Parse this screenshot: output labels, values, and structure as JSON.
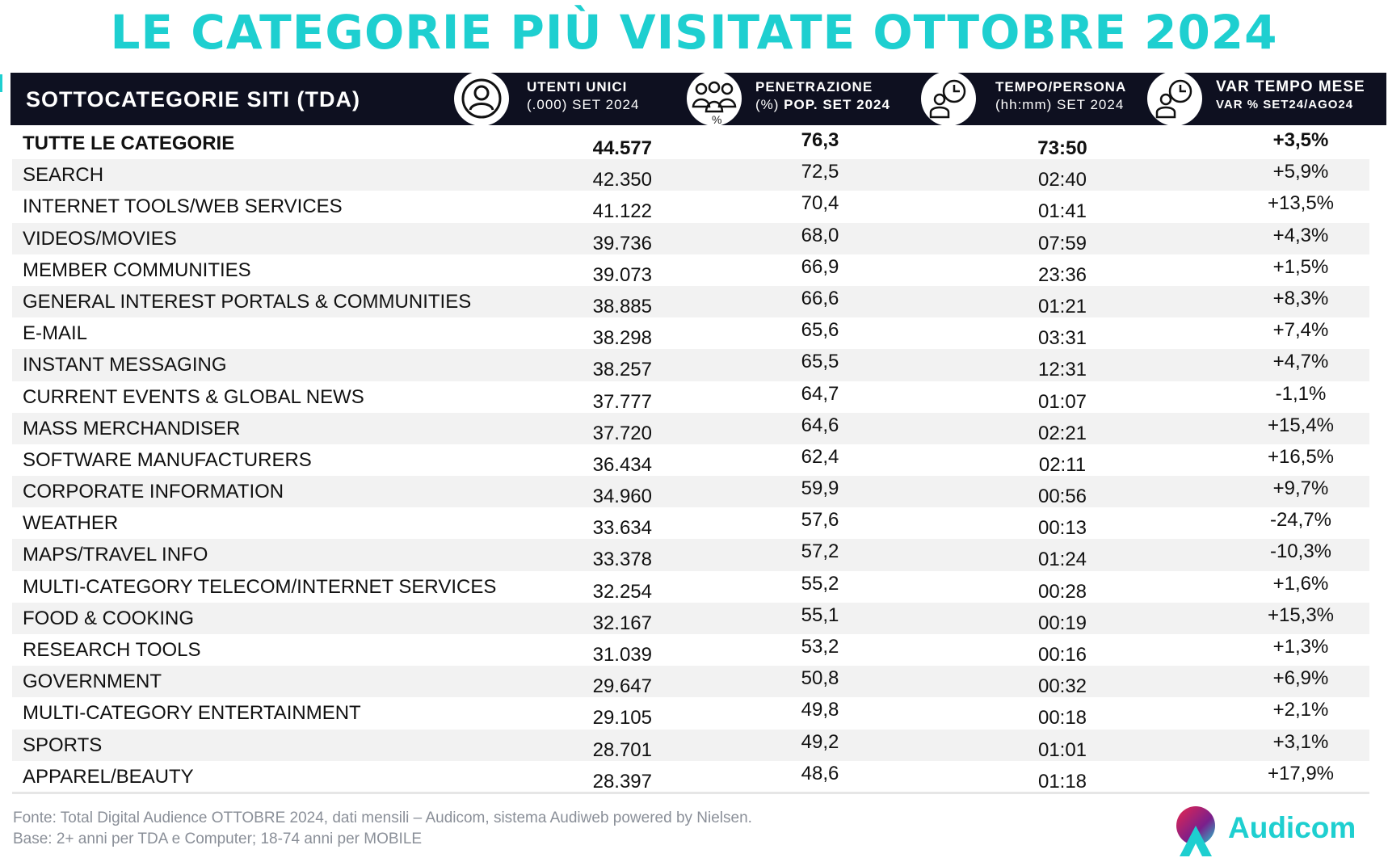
{
  "title": "LE CATEGORIE PIÙ VISITATE OTTOBRE 2024",
  "header": {
    "label": "SOTTOCATEGORIE SITI  (TDA)",
    "col_users": {
      "line1": "UTENTI UNICI",
      "line2": "(.000) SET 2024"
    },
    "col_pen": {
      "line1": "PENETRAZIONE",
      "line2_a": "(%) ",
      "line2_b": "POP. SET 2024",
      "pct_symbol": "%"
    },
    "col_time": {
      "line1": "TEMPO/PERSONA",
      "line2": "(hh:mm) SET 2024"
    },
    "col_var": {
      "line1": "VAR TEMPO MESE",
      "line2": "VAR % SET24/AGO24"
    }
  },
  "rows": [
    {
      "name": "TUTTE LE CATEGORIE",
      "users": "44.577",
      "pen": "76,3",
      "time": "73:50",
      "var": "+3,5%"
    },
    {
      "name": "SEARCH",
      "users": "42.350",
      "pen": "72,5",
      "time": "02:40",
      "var": "+5,9%"
    },
    {
      "name": "INTERNET TOOLS/WEB SERVICES",
      "users": "41.122",
      "pen": "70,4",
      "time": "01:41",
      "var": "+13,5%"
    },
    {
      "name": "VIDEOS/MOVIES",
      "users": "39.736",
      "pen": "68,0",
      "time": "07:59",
      "var": "+4,3%"
    },
    {
      "name": "MEMBER COMMUNITIES",
      "users": "39.073",
      "pen": "66,9",
      "time": "23:36",
      "var": "+1,5%"
    },
    {
      "name": "GENERAL INTEREST PORTALS & COMMUNITIES",
      "users": "38.885",
      "pen": "66,6",
      "time": "01:21",
      "var": "+8,3%"
    },
    {
      "name": "E-MAIL",
      "users": "38.298",
      "pen": "65,6",
      "time": "03:31",
      "var": "+7,4%"
    },
    {
      "name": "INSTANT MESSAGING",
      "users": "38.257",
      "pen": "65,5",
      "time": "12:31",
      "var": "+4,7%"
    },
    {
      "name": "CURRENT EVENTS & GLOBAL NEWS",
      "users": "37.777",
      "pen": "64,7",
      "time": "01:07",
      "var": "-1,1%"
    },
    {
      "name": "MASS MERCHANDISER",
      "users": "37.720",
      "pen": "64,6",
      "time": "02:21",
      "var": "+15,4%"
    },
    {
      "name": "SOFTWARE MANUFACTURERS",
      "users": "36.434",
      "pen": "62,4",
      "time": "02:11",
      "var": "+16,5%"
    },
    {
      "name": "CORPORATE INFORMATION",
      "users": "34.960",
      "pen": "59,9",
      "time": "00:56",
      "var": "+9,7%"
    },
    {
      "name": "WEATHER",
      "users": "33.634",
      "pen": "57,6",
      "time": "00:13",
      "var": "-24,7%"
    },
    {
      "name": "MAPS/TRAVEL INFO",
      "users": "33.378",
      "pen": "57,2",
      "time": "01:24",
      "var": "-10,3%"
    },
    {
      "name": "MULTI-CATEGORY TELECOM/INTERNET SERVICES",
      "users": "32.254",
      "pen": "55,2",
      "time": "00:28",
      "var": "+1,6%"
    },
    {
      "name": "FOOD & COOKING",
      "users": "32.167",
      "pen": "55,1",
      "time": "00:19",
      "var": "+15,3%"
    },
    {
      "name": "RESEARCH TOOLS",
      "users": "31.039",
      "pen": "53,2",
      "time": "00:16",
      "var": "+1,3%"
    },
    {
      "name": "GOVERNMENT",
      "users": "29.647",
      "pen": "50,8",
      "time": "00:32",
      "var": "+6,9%"
    },
    {
      "name": "MULTI-CATEGORY ENTERTAINMENT",
      "users": "29.105",
      "pen": "49,8",
      "time": "00:18",
      "var": "+2,1%"
    },
    {
      "name": "SPORTS",
      "users": "28.701",
      "pen": "49,2",
      "time": "01:01",
      "var": "+3,1%"
    },
    {
      "name": "APPAREL/BEAUTY",
      "users": "28.397",
      "pen": "48,6",
      "time": "01:18",
      "var": "+17,9%"
    }
  ],
  "footer": {
    "source": "Fonte: Total Digital Audience OTTOBRE 2024, dati mensili – Audicom, sistema Audiweb powered by Nielsen.",
    "base": "Base: 2+ anni per TDA e Computer; 18-74 anni per MOBILE"
  },
  "logo": {
    "text": "Audicom"
  },
  "colors": {
    "accent": "#1ecfd0",
    "header_bg": "#0e1020",
    "stripe": "#f2f2f2"
  },
  "icons": [
    "user-icon",
    "group-icon",
    "user-clock-icon",
    "user-clock-icon"
  ]
}
